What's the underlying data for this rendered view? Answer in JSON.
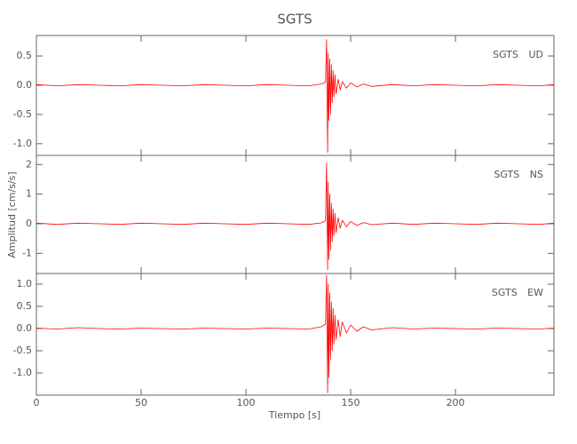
{
  "figure": {
    "title": "SGTS",
    "x_label": "Tiempo [s]",
    "y_label": "Amplitud [cm/s/s]"
  },
  "chart_data": [
    {
      "type": "line",
      "label": "SGTS UD",
      "color": "#ff0000",
      "x": [
        0,
        10,
        20,
        30,
        40,
        50,
        60,
        70,
        80,
        90,
        100,
        110,
        120,
        130,
        136,
        138,
        138.5,
        139,
        139.3,
        139.6,
        140,
        140.4,
        140.8,
        141.2,
        141.6,
        142,
        142.5,
        143,
        144,
        145,
        146,
        148,
        150,
        153,
        156,
        160,
        170,
        180,
        190,
        200,
        210,
        220,
        230,
        240,
        247
      ],
      "values": [
        0.01,
        -0.01,
        0.01,
        0,
        -0.01,
        0.01,
        0,
        -0.01,
        0.01,
        0,
        -0.01,
        0.01,
        0,
        -0.01,
        0.02,
        0.05,
        0.78,
        -1.15,
        0.55,
        -0.6,
        0.45,
        -0.5,
        0.35,
        -0.3,
        0.25,
        -0.2,
        0.18,
        -0.15,
        0.1,
        -0.08,
        0.06,
        -0.05,
        0.04,
        -0.03,
        0.02,
        -0.02,
        0.01,
        -0.01,
        0.01,
        0,
        -0.01,
        0.01,
        0,
        -0.01,
        0.01
      ],
      "xlim": [
        0,
        247
      ],
      "xticks": [
        0,
        50,
        100,
        150,
        200
      ],
      "ylim": [
        -1.2,
        0.85
      ],
      "yticks": [
        0.5,
        {
          "value": 0,
          "label": "0.0"
        },
        -0.5,
        {
          "value": -1,
          "label": "-1.0"
        }
      ]
    },
    {
      "type": "line",
      "label": "SGTS NS",
      "color": "#ff0000",
      "x": [
        0,
        10,
        20,
        30,
        40,
        50,
        60,
        70,
        80,
        90,
        100,
        110,
        120,
        130,
        136,
        138,
        138.5,
        139,
        139.3,
        139.6,
        140,
        140.4,
        140.8,
        141.2,
        141.6,
        142,
        142.5,
        143,
        144,
        145,
        146,
        148,
        150,
        153,
        156,
        160,
        170,
        180,
        190,
        200,
        210,
        220,
        230,
        240,
        247
      ],
      "values": [
        0.02,
        -0.02,
        0.02,
        0,
        -0.02,
        0.02,
        0,
        -0.02,
        0.02,
        0,
        -0.02,
        0.02,
        0,
        -0.02,
        0.03,
        0.1,
        2.05,
        -1.55,
        1.4,
        -1.2,
        1.0,
        -0.9,
        0.7,
        -0.6,
        0.5,
        -0.4,
        0.35,
        -0.3,
        0.2,
        -0.15,
        0.12,
        -0.1,
        0.08,
        -0.06,
        0.04,
        -0.03,
        0.02,
        -0.02,
        0.02,
        0,
        -0.02,
        0.02,
        0,
        -0.02,
        0.02
      ],
      "xlim": [
        0,
        247
      ],
      "xticks": [
        0,
        50,
        100,
        150,
        200
      ],
      "ylim": [
        -1.68,
        2.31
      ],
      "yticks": [
        2,
        1,
        0,
        -1
      ]
    },
    {
      "type": "line",
      "label": "SGTS EW",
      "color": "#ff0000",
      "x": [
        0,
        10,
        20,
        30,
        40,
        50,
        60,
        70,
        80,
        90,
        100,
        110,
        120,
        130,
        136,
        138,
        138.5,
        139,
        139.3,
        139.6,
        140,
        140.4,
        140.8,
        141.2,
        141.6,
        142,
        142.5,
        143,
        144,
        145,
        146,
        148,
        150,
        153,
        156,
        160,
        170,
        180,
        190,
        200,
        210,
        220,
        230,
        240,
        247
      ],
      "values": [
        0.01,
        -0.01,
        0.02,
        0,
        -0.01,
        0.01,
        0,
        -0.01,
        0.01,
        0,
        -0.01,
        0.01,
        0,
        -0.01,
        0.04,
        0.1,
        1.2,
        -1.45,
        1.0,
        -1.1,
        0.8,
        -0.7,
        0.6,
        -0.5,
        0.45,
        -0.35,
        0.3,
        -0.25,
        0.2,
        -0.18,
        0.15,
        -0.1,
        0.08,
        -0.06,
        0.04,
        -0.03,
        0.02,
        -0.01,
        0.01,
        0,
        -0.01,
        0.01,
        0,
        -0.01,
        0.01
      ],
      "xlim": [
        0,
        247
      ],
      "xticks": [
        0,
        50,
        100,
        150,
        200
      ],
      "ylim": [
        -1.5,
        1.24
      ],
      "yticks": [
        {
          "value": 1,
          "label": "1.0"
        },
        0.5,
        {
          "value": 0,
          "label": "0.0"
        },
        -0.5,
        {
          "value": -1,
          "label": "-1.0"
        }
      ]
    }
  ]
}
